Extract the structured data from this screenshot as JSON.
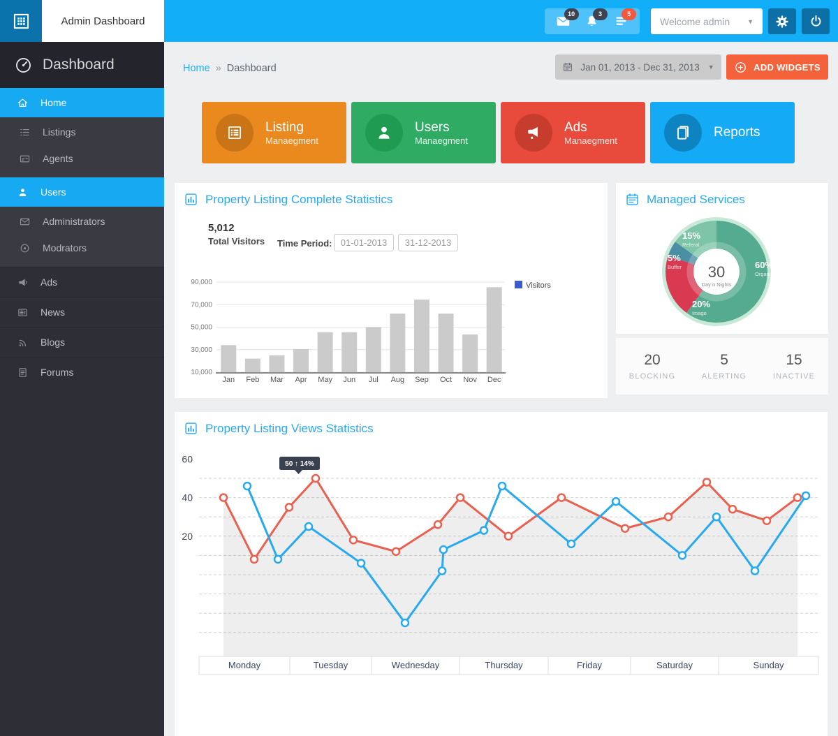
{
  "topbar": {
    "brand": "Admin Dashboard",
    "welcome": "Welcome admin",
    "notifications": [
      {
        "icon": "mail-icon",
        "count": "10",
        "badge_color": "#3d4351"
      },
      {
        "icon": "bell-icon",
        "count": "3",
        "badge_color": "#3d4351"
      },
      {
        "icon": "tasks-icon",
        "count": "5",
        "badge_color": "#f4583e"
      }
    ]
  },
  "sidebar": {
    "title": "Dashboard",
    "blocks": [
      {
        "type": "item",
        "label": "Home",
        "icon": "home",
        "active": true
      },
      {
        "type": "sub",
        "items": [
          {
            "label": "Listings",
            "icon": "list"
          },
          {
            "label": "Agents",
            "icon": "id-card"
          }
        ]
      },
      {
        "type": "item",
        "label": "Users",
        "icon": "users",
        "active": true
      },
      {
        "type": "sub",
        "items": [
          {
            "label": "Administrators",
            "icon": "envelope"
          },
          {
            "label": "Modrators",
            "icon": "disc"
          }
        ]
      },
      {
        "type": "item",
        "label": "Ads",
        "icon": "megaphone",
        "sect": true
      },
      {
        "type": "item",
        "label": "News",
        "icon": "news",
        "sect": true
      },
      {
        "type": "item",
        "label": "Blogs",
        "icon": "rss",
        "sect": true
      },
      {
        "type": "item",
        "label": "Forums",
        "icon": "file",
        "sect": true
      }
    ]
  },
  "breadcrumb": {
    "home": "Home",
    "separator": "»",
    "current": "Dashboard"
  },
  "toolbar": {
    "date_range": "Jan 01, 2013 - Dec 31, 2013",
    "add_widgets_label": "ADD WIDGETS"
  },
  "cards": [
    {
      "title": "Listing",
      "subtitle": "Manaegment",
      "icon": "table",
      "bg": "#e9891e",
      "circle": "#c97417"
    },
    {
      "title": "Users",
      "subtitle": "Manaegment",
      "icon": "person",
      "bg": "#2fab63",
      "circle": "#1f9b52"
    },
    {
      "title": "Ads",
      "subtitle": "Manaegment",
      "icon": "megaphone-f",
      "bg": "#e84b3b",
      "circle": "#c63d2e"
    },
    {
      "title": "Reports",
      "subtitle": "",
      "icon": "book",
      "bg": "#15aaf6",
      "circle": "#0d83c2"
    }
  ],
  "visitors_panel": {
    "title": "Property Listing Complete Statistics",
    "total_value": "5,012",
    "total_label": "Total Visitors",
    "time_period_label": "Time Period:",
    "date_from": "01-01-2013",
    "date_to": "31-12-2013"
  },
  "managed_panel": {
    "title": "Managed Services",
    "center_value": "30",
    "center_label": "Day n Nights",
    "stats": [
      {
        "value": "20",
        "label": "BLOCKING"
      },
      {
        "value": "5",
        "label": "ALERTING"
      },
      {
        "value": "15",
        "label": "INACTIVE"
      }
    ]
  },
  "views_panel": {
    "title": "Property Listing Views Statistics"
  },
  "chart_data": [
    {
      "type": "bar",
      "title": "Property Listing Complete Statistics",
      "categories": [
        "Jan",
        "Feb",
        "Mar",
        "Apr",
        "May",
        "Jun",
        "Jul",
        "Aug",
        "Sep",
        "Oct",
        "Nov",
        "Dec"
      ],
      "values": [
        34000,
        22000,
        25000,
        30500,
        45500,
        45500,
        50000,
        62000,
        74500,
        62000,
        43500,
        85500
      ],
      "xlabel": "",
      "ylabel": "",
      "ylim": [
        10000,
        90000
      ],
      "yticks": [
        10000,
        30000,
        50000,
        70000,
        90000
      ],
      "grid": true,
      "bar_color": "#cbcbcb",
      "legend": [
        {
          "label": "Visitors",
          "color": "#3a5ccc"
        }
      ],
      "legend_position": "right"
    },
    {
      "type": "pie",
      "title": "Managed Services",
      "donut": true,
      "center_text": "30",
      "center_subtext": "Day n Nights",
      "ring_color": "#c9e9d8",
      "slices": [
        {
          "label": "Organic",
          "pct": 60,
          "color": "#55ab8f",
          "label_pos": [
            199,
            122
          ]
        },
        {
          "label": "Image",
          "pct": 20,
          "color": "#d93a52",
          "label_pos": [
            109,
            178
          ]
        },
        {
          "label": "Buffer",
          "pct": 5,
          "color": "#4a8fa3",
          "label_pos": [
            74,
            112
          ]
        },
        {
          "label": "Referal",
          "pct": 15,
          "color": "#7ec4a7",
          "label_pos": [
            95,
            80
          ]
        }
      ]
    },
    {
      "type": "line",
      "title": "Property Listing Views Statistics",
      "categories": [
        "Monday",
        "Tuesday",
        "Wednesday",
        "Thursday",
        "Friday",
        "Saturday",
        "Sunday"
      ],
      "yticks": [
        60,
        40,
        20
      ],
      "grid_values": [
        50,
        40,
        30,
        20,
        10,
        0,
        -10,
        -20,
        -30
      ],
      "grid": true,
      "legend_position": "none",
      "day_edges": [
        0,
        130,
        247,
        373,
        500,
        618,
        744,
        887
      ],
      "series": [
        {
          "name": "series-red",
          "color": "#e9604f",
          "fill_under": true,
          "points": [
            [
              35,
              40
            ],
            [
              79,
              8
            ],
            [
              129,
              35
            ],
            [
              167,
              50
            ],
            [
              221,
              18
            ],
            [
              282,
              12
            ],
            [
              342,
              26
            ],
            [
              374,
              40
            ],
            [
              443,
              20
            ],
            [
              519,
              40
            ],
            [
              610,
              24
            ],
            [
              672,
              30
            ],
            [
              727,
              48
            ],
            [
              764,
              34
            ],
            [
              813,
              28
            ],
            [
              857,
              40
            ]
          ]
        },
        {
          "name": "series-blue",
          "color": "#27a9f1",
          "fill_under": false,
          "points": [
            [
              69,
              46
            ],
            [
              113,
              8
            ],
            [
              157,
              25
            ],
            [
              232,
              6
            ],
            [
              295,
              -25
            ],
            [
              348,
              2
            ],
            [
              350,
              13
            ],
            [
              408,
              23
            ],
            [
              434,
              46
            ],
            [
              533,
              16
            ],
            [
              597,
              38
            ],
            [
              692,
              10
            ],
            [
              741,
              30
            ],
            [
              796,
              2
            ],
            [
              869,
              41
            ]
          ]
        }
      ],
      "tooltip": {
        "text": "50 ↑ 14%",
        "series": 0,
        "point": 3
      }
    }
  ]
}
